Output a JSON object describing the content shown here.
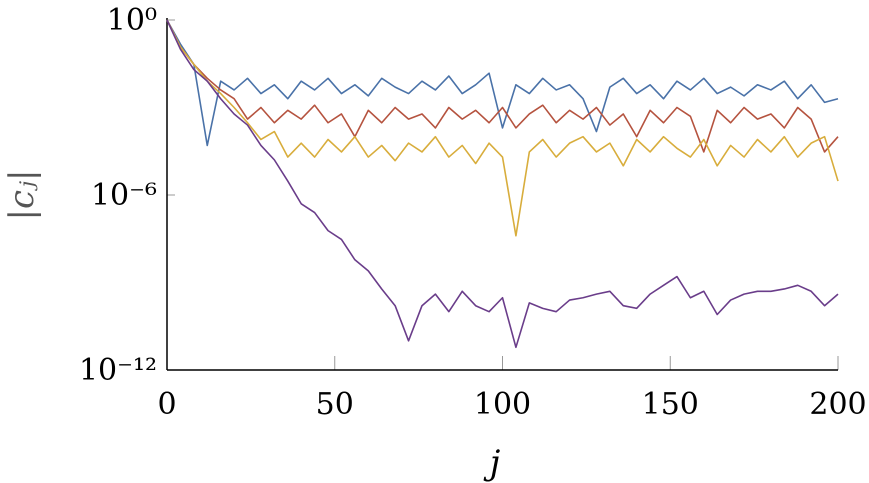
{
  "chart_data": {
    "type": "line",
    "xlabel": "j",
    "ylabel": "|cⱼ|",
    "x": [
      0,
      4,
      8,
      12,
      16,
      20,
      24,
      28,
      32,
      36,
      40,
      44,
      48,
      52,
      56,
      60,
      64,
      68,
      72,
      76,
      80,
      84,
      88,
      92,
      96,
      100,
      104,
      108,
      112,
      116,
      120,
      124,
      128,
      132,
      136,
      140,
      144,
      148,
      152,
      156,
      160,
      164,
      168,
      172,
      176,
      180,
      184,
      188,
      192,
      196,
      200
    ],
    "xlim": [
      0,
      200
    ],
    "xticks": [
      0,
      50,
      100,
      150,
      200
    ],
    "ylim": [
      1e-12,
      1
    ],
    "log_y": true,
    "yticks": [
      {
        "value": 1e-12,
        "label": "10⁻¹²"
      },
      {
        "value": 1e-06,
        "label": "10⁻⁶"
      },
      {
        "value": 1,
        "label": "10⁰"
      }
    ],
    "series": [
      {
        "color": "#4a72a8",
        "values": [
          1,
          0.15,
          0.03,
          5e-05,
          0.008,
          0.004,
          0.01,
          0.003,
          0.006,
          0.002,
          0.008,
          0.004,
          0.01,
          0.003,
          0.006,
          0.0025,
          0.01,
          0.005,
          0.003,
          0.008,
          0.004,
          0.012,
          0.003,
          0.006,
          0.015,
          0.0002,
          0.006,
          0.003,
          0.01,
          0.004,
          0.006,
          0.002,
          0.00015,
          0.005,
          0.01,
          0.003,
          0.006,
          0.002,
          0.008,
          0.004,
          0.01,
          0.003,
          0.005,
          0.0025,
          0.006,
          0.004,
          0.008,
          0.002,
          0.006,
          0.0015,
          0.002
        ]
      },
      {
        "color": "#b5533f",
        "values": [
          1,
          0.12,
          0.03,
          0.01,
          0.004,
          0.002,
          0.0004,
          0.001,
          0.0003,
          0.0008,
          0.0004,
          0.0012,
          0.0003,
          0.0006,
          0.0001,
          0.0008,
          0.0003,
          0.001,
          0.0004,
          0.0006,
          0.0002,
          0.001,
          0.0004,
          0.0008,
          0.0003,
          0.001,
          0.0002,
          0.0006,
          0.0012,
          0.0003,
          0.0008,
          0.0004,
          0.001,
          0.00025,
          0.0006,
          0.0001,
          0.0008,
          0.0003,
          0.001,
          0.0005,
          3e-05,
          0.0008,
          0.0003,
          0.001,
          0.0004,
          0.0006,
          0.0002,
          0.001,
          0.0004,
          3e-05,
          0.0001
        ]
      },
      {
        "color": "#d8ad3c",
        "values": [
          1,
          0.12,
          0.03,
          0.008,
          0.003,
          0.001,
          0.0003,
          8e-05,
          0.00015,
          2e-05,
          6e-05,
          2e-05,
          8e-05,
          3e-05,
          0.0001,
          2e-05,
          5e-05,
          1.5e-05,
          6e-05,
          3e-05,
          0.0001,
          2e-05,
          5e-05,
          1.2e-05,
          6e-05,
          2e-05,
          4e-08,
          3e-05,
          8e-05,
          2e-05,
          6e-05,
          0.0001,
          3e-05,
          6e-05,
          1e-05,
          8e-05,
          3e-05,
          0.0001,
          4e-05,
          2e-05,
          8e-05,
          1e-05,
          5e-05,
          2e-05,
          8e-05,
          3e-05,
          0.0001,
          2e-05,
          6e-05,
          0.0001,
          3e-06
        ]
      },
      {
        "color": "#6a3d8a",
        "values": [
          1,
          0.1,
          0.02,
          0.008,
          0.002,
          0.0006,
          0.00025,
          5e-05,
          1.6e-05,
          3e-06,
          5e-07,
          2.5e-07,
          6e-08,
          3e-08,
          6e-09,
          2.5e-09,
          6e-10,
          1.6e-10,
          1e-11,
          1.6e-10,
          4e-10,
          1e-10,
          5e-10,
          1.6e-10,
          1e-10,
          3e-10,
          6e-12,
          2e-10,
          1.3e-10,
          1e-10,
          2.5e-10,
          3e-10,
          4e-10,
          5e-10,
          1.6e-10,
          1.3e-10,
          4e-10,
          8e-10,
          1.6e-09,
          3e-10,
          5e-10,
          8e-11,
          2.5e-10,
          4e-10,
          5e-10,
          5e-10,
          6e-10,
          8e-10,
          5e-10,
          1.6e-10,
          4e-10
        ]
      }
    ]
  }
}
